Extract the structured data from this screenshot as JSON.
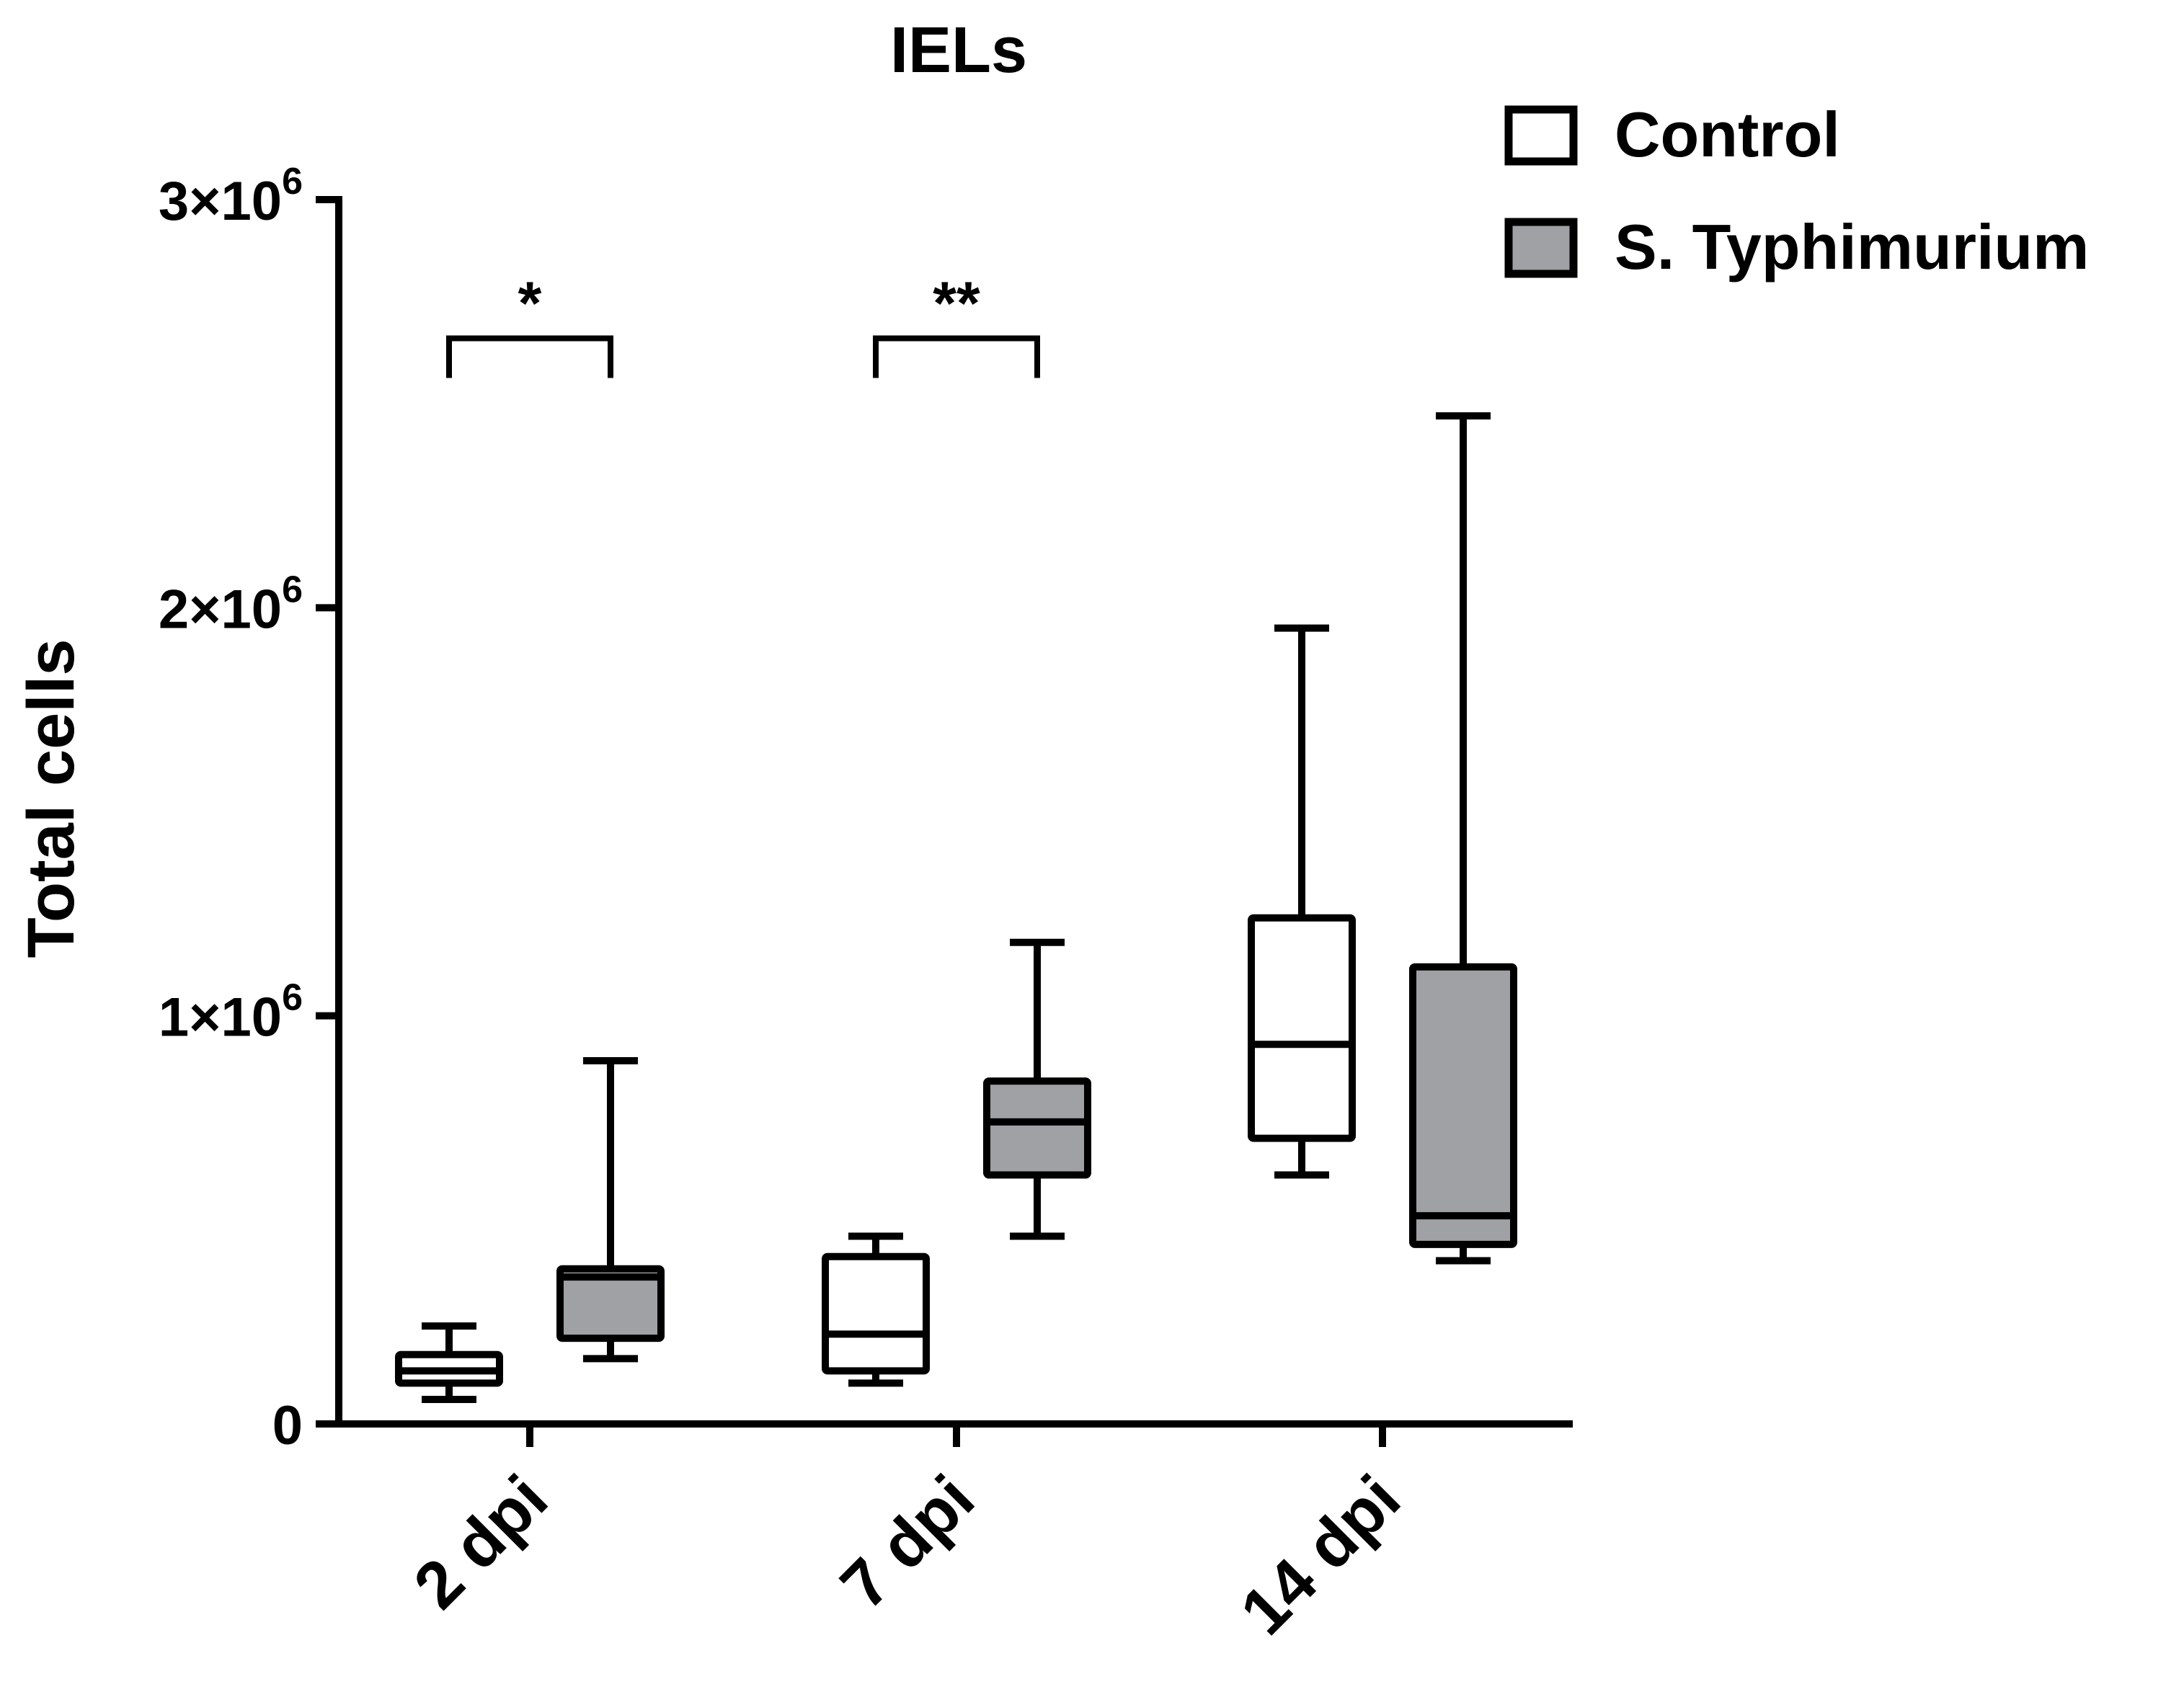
{
  "chart_data": {
    "type": "box",
    "title": "IELs",
    "xlabel": "",
    "ylabel": "Total cells",
    "ylim": [
      0,
      3000000
    ],
    "grid": false,
    "legend_position": "top-right",
    "y_ticks": [
      {
        "value": 0,
        "mantissa": "0",
        "exponent": ""
      },
      {
        "value": 1000000,
        "mantissa": "1×10",
        "exponent": "6"
      },
      {
        "value": 2000000,
        "mantissa": "2×10",
        "exponent": "6"
      },
      {
        "value": 3000000,
        "mantissa": "3×10",
        "exponent": "6"
      }
    ],
    "categories": [
      "2 dpi",
      "7 dpi",
      "14 dpi"
    ],
    "series": [
      {
        "name": "Control",
        "color": "#ffffff",
        "boxes": [
          {
            "min": 60000,
            "q1": 100000,
            "median": 130000,
            "q3": 170000,
            "max": 240000
          },
          {
            "min": 100000,
            "q1": 130000,
            "median": 220000,
            "q3": 410000,
            "max": 460000
          },
          {
            "min": 610000,
            "q1": 700000,
            "median": 930000,
            "q3": 1240000,
            "max": 1950000
          }
        ]
      },
      {
        "name": "S. Typhimurium",
        "color": "#a0a1a4",
        "boxes": [
          {
            "min": 160000,
            "q1": 210000,
            "median": 360000,
            "q3": 380000,
            "max": 890000
          },
          {
            "min": 460000,
            "q1": 610000,
            "median": 740000,
            "q3": 840000,
            "max": 1180000
          },
          {
            "min": 400000,
            "q1": 440000,
            "median": 510000,
            "q3": 1120000,
            "max": 2470000
          }
        ]
      }
    ],
    "significance": [
      {
        "category": "2 dpi",
        "label": "*",
        "y": 2660000
      },
      {
        "category": "7 dpi",
        "label": "**",
        "y": 2660000
      }
    ]
  }
}
